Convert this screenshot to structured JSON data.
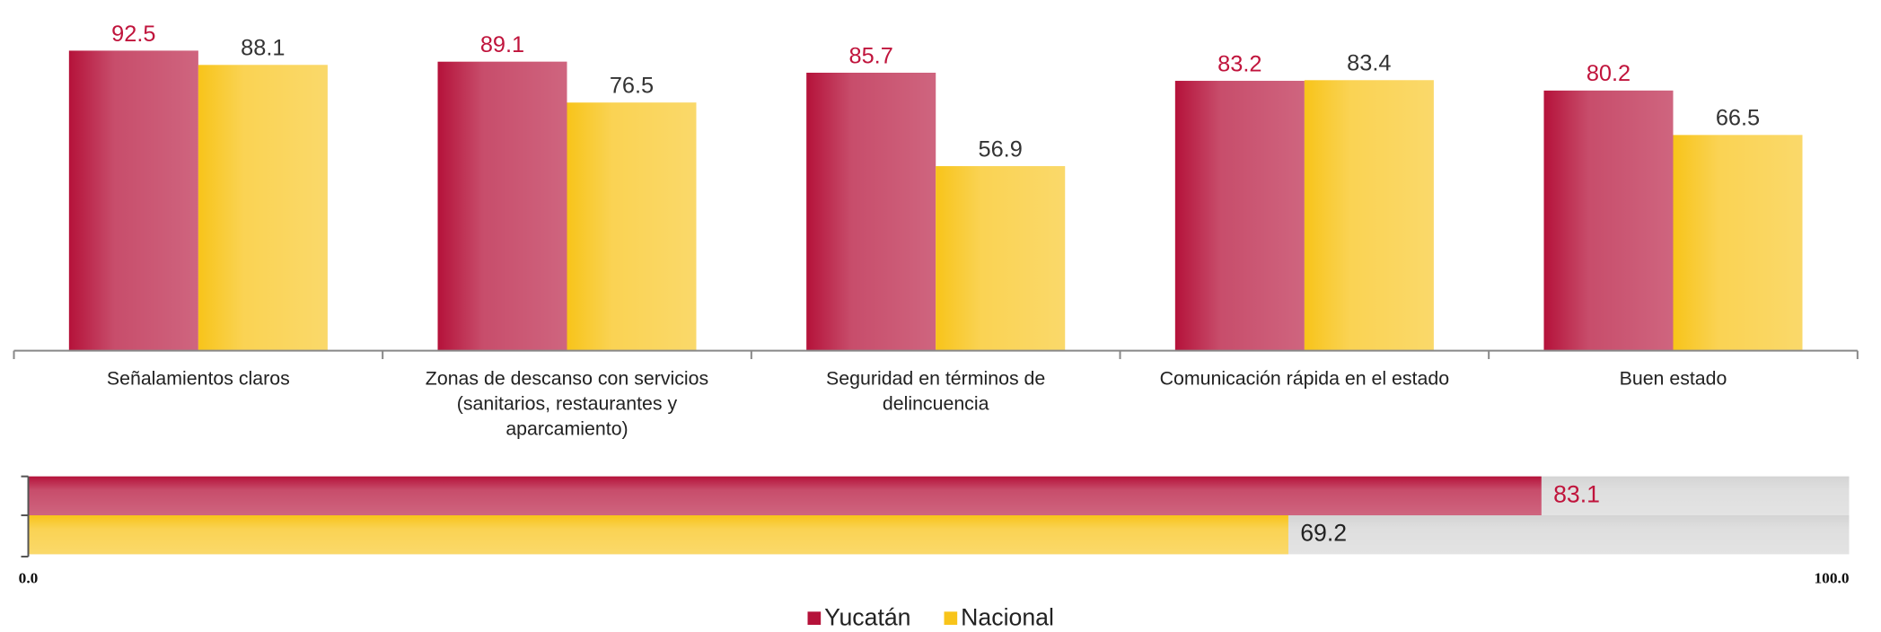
{
  "chart_data": [
    {
      "type": "bar",
      "categories": [
        "Señalamientos claros",
        "Zonas de descanso con servicios (sanitarios, restaurantes y aparcamiento)",
        "Seguridad en términos de delincuencia",
        "Comunicación rápida en el estado",
        "Buen estado"
      ],
      "series": [
        {
          "name": "Yucatán",
          "color": "#b5123a",
          "label_color": "#c0143c",
          "values": [
            92.5,
            89.1,
            85.7,
            83.2,
            80.2
          ]
        },
        {
          "name": "Nacional",
          "color": "#f8c41a",
          "label_color": "#333333",
          "values": [
            88.1,
            76.5,
            56.9,
            83.4,
            66.5
          ]
        }
      ],
      "ylim": [
        0,
        100
      ],
      "legend": "bottom"
    },
    {
      "type": "hbar",
      "categories": [
        null,
        null
      ],
      "values": [
        83.1,
        69.2
      ],
      "colors": [
        "#b5123a",
        "#f8c41a"
      ],
      "label_colors": [
        "#c0143c",
        "#222222"
      ],
      "xlim": [
        0,
        100
      ],
      "xticks": [
        {
          "value": 0,
          "label": "0.0"
        },
        {
          "value": 100,
          "label": "100.0"
        }
      ]
    }
  ]
}
